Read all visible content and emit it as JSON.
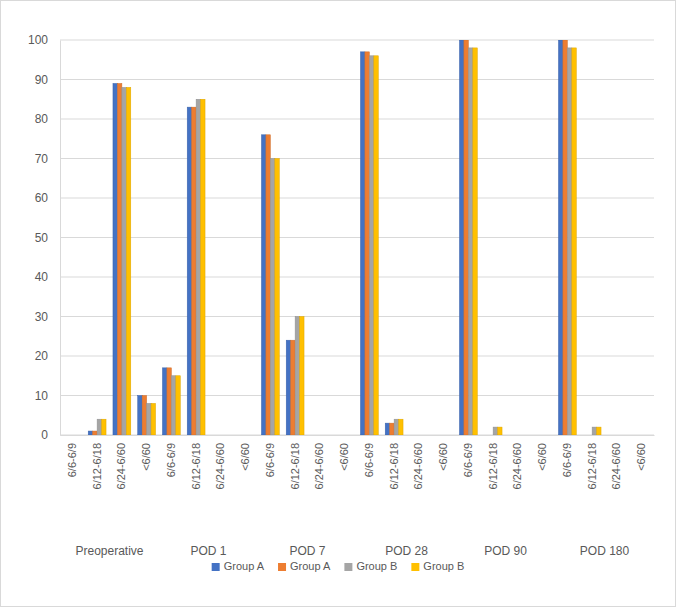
{
  "chart_data": {
    "type": "bar",
    "categories": [
      "6/6-6/9",
      "6/12-6/18",
      "6/24-6/60",
      "<6/60",
      "6/6-6/9",
      "6/12-6/18",
      "6/24-6/60",
      "<6/60",
      "6/6-6/9",
      "6/12-6/18",
      "6/24-6/60",
      "<6/60",
      "6/6-6/9",
      "6/12-6/18",
      "6/24-6/60",
      "<6/60",
      "6/6-6/9",
      "6/12-6/18",
      "6/24-6/60",
      "<6/60",
      "6/6-6/9",
      "6/12-6/18",
      "6/24-6/60",
      "<6/60"
    ],
    "groups": [
      "Preoperative",
      "POD 1",
      "POD 7",
      "POD 28",
      "POD 90",
      "POD 180"
    ],
    "series": [
      {
        "name": "Group A",
        "color": "#4472c4",
        "values": [
          0,
          1,
          89,
          10,
          17,
          83,
          0,
          0,
          76,
          24,
          0,
          0,
          97,
          3,
          0,
          0,
          100,
          0,
          0,
          0,
          100,
          0,
          0,
          0
        ]
      },
      {
        "name": "Group A",
        "color": "#ed7d31",
        "values": [
          0,
          1,
          89,
          10,
          17,
          83,
          0,
          0,
          76,
          24,
          0,
          0,
          97,
          3,
          0,
          0,
          100,
          0,
          0,
          0,
          100,
          0,
          0,
          0
        ]
      },
      {
        "name": "Group B",
        "color": "#a5a5a5",
        "values": [
          0,
          4,
          88,
          8,
          15,
          85,
          0,
          0,
          70,
          30,
          0,
          0,
          96,
          4,
          0,
          0,
          98,
          2,
          0,
          0,
          98,
          2,
          0,
          0
        ]
      },
      {
        "name": "Group B",
        "color": "#ffc000",
        "values": [
          0,
          4,
          88,
          8,
          15,
          85,
          0,
          0,
          70,
          30,
          0,
          0,
          96,
          4,
          0,
          0,
          98,
          2,
          0,
          0,
          98,
          2,
          0,
          0
        ]
      }
    ],
    "ylim": [
      0,
      100
    ],
    "yticks": [
      0,
      10,
      20,
      30,
      40,
      50,
      60,
      70,
      80,
      90,
      100
    ],
    "grid": true,
    "legend": "bottom"
  }
}
